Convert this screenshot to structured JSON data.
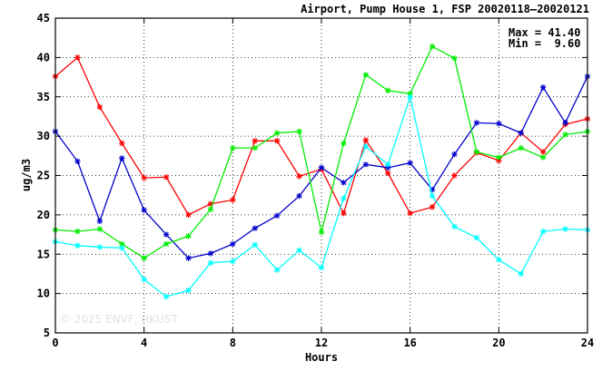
{
  "chart_data": {
    "type": "line",
    "title": "Airport, Pump House 1, FSP 20020118–20020121",
    "xlabel": "Hours",
    "ylabel": "ug/m3",
    "xlim": [
      0,
      24
    ],
    "ylim": [
      5,
      45
    ],
    "x_ticks": [
      0,
      4,
      8,
      12,
      16,
      20,
      24
    ],
    "y_ticks": [
      5,
      10,
      15,
      20,
      25,
      30,
      35,
      40,
      45
    ],
    "grid": true,
    "stats": {
      "max": "Max = 41.40",
      "min": "Min =  9.60"
    },
    "watermark": "© 2025  ENVF, HKUST",
    "x": [
      0,
      1,
      2,
      3,
      4,
      5,
      6,
      7,
      8,
      9,
      10,
      11,
      12,
      13,
      14,
      15,
      16,
      17,
      18,
      19,
      20,
      21,
      22,
      23,
      24
    ],
    "series": [
      {
        "color": "#ff0000",
        "values": [
          37.6,
          40.0,
          33.7,
          29.1,
          24.7,
          24.8,
          20.0,
          21.4,
          21.9,
          29.4,
          29.4,
          24.9,
          25.8,
          20.2,
          29.5,
          25.3,
          20.2,
          21.0,
          25.0,
          27.9,
          26.9,
          30.4,
          28.0,
          31.5,
          32.2
        ]
      },
      {
        "color": "#0000cc",
        "values": [
          30.6,
          26.8,
          19.2,
          27.2,
          20.6,
          17.5,
          14.5,
          15.1,
          16.3,
          18.3,
          19.9,
          22.4,
          26.0,
          24.1,
          26.4,
          26.0,
          26.6,
          23.2,
          27.7,
          31.7,
          31.6,
          30.4,
          36.2,
          31.7,
          37.6
        ]
      },
      {
        "color": "#00ee00",
        "values": [
          18.1,
          17.9,
          18.2,
          16.3,
          14.5,
          16.3,
          17.3,
          20.7,
          28.5,
          28.5,
          30.4,
          30.6,
          17.8,
          29.1,
          37.8,
          35.8,
          35.4,
          41.4,
          39.9,
          28.0,
          27.3,
          28.5,
          27.3,
          30.2,
          30.6
        ]
      },
      {
        "color": "#00ffff",
        "values": [
          16.6,
          16.1,
          15.9,
          15.8,
          11.8,
          9.6,
          10.4,
          13.9,
          14.1,
          16.2,
          13.0,
          15.5,
          13.3,
          22.1,
          28.7,
          26.4,
          35.0,
          22.4,
          18.5,
          17.1,
          14.3,
          12.5,
          17.9,
          18.2,
          18.1
        ]
      }
    ]
  }
}
